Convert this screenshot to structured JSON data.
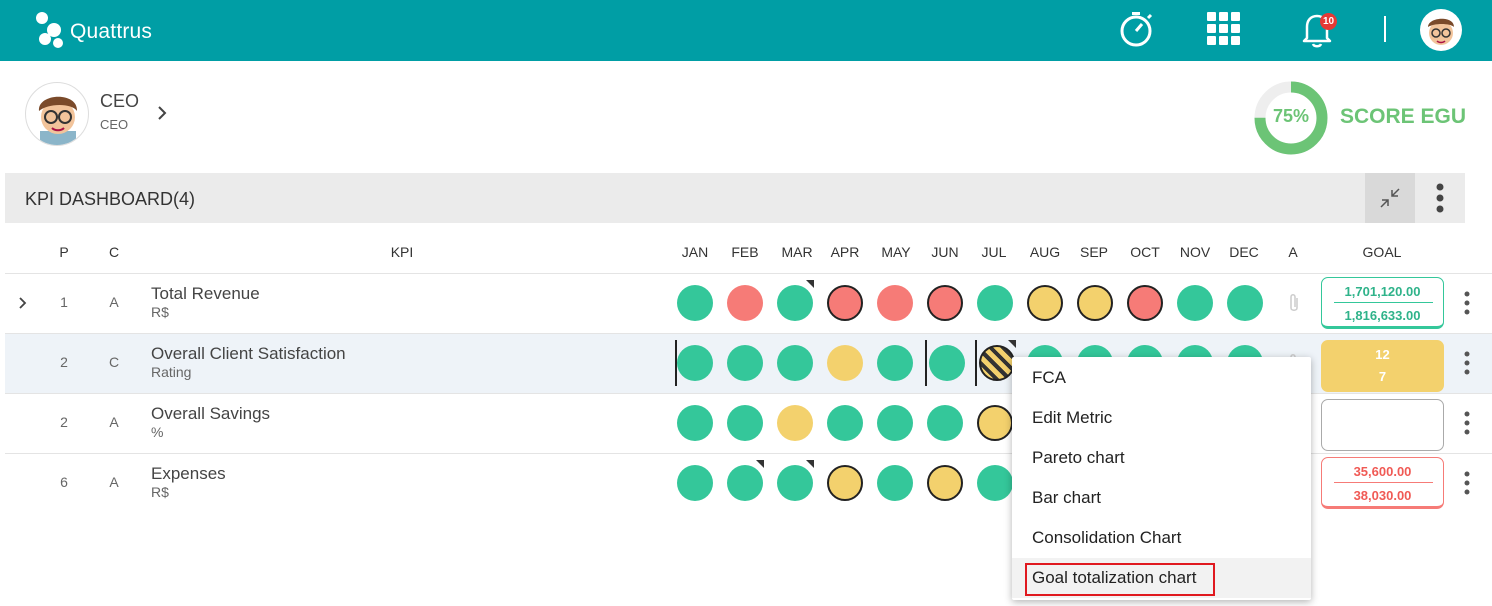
{
  "topbar": {
    "brand": "Quattrus",
    "notification_count": "10",
    "icons": [
      "timer-icon",
      "apps-grid-icon",
      "bell-icon",
      "user-avatar"
    ]
  },
  "profile": {
    "name": "CEO",
    "role": "CEO"
  },
  "score": {
    "percent_label": "75%",
    "percent_value": 75,
    "label": "SCORE EGU",
    "color": "#6cc476"
  },
  "dashboard": {
    "title": "KPI DASHBOARD(4)",
    "columns": {
      "p": "P",
      "c": "C",
      "kpi": "KPI",
      "months": [
        "JAN",
        "FEB",
        "MAR",
        "APR",
        "MAY",
        "JUN",
        "JUL",
        "AUG",
        "SEP",
        "OCT",
        "NOV",
        "DEC"
      ],
      "a": "A",
      "goal": "GOAL"
    },
    "rows": [
      {
        "p": "1",
        "c": "A",
        "name": "Total Revenue",
        "unit": "R$",
        "goal_top": "1,701,120.00",
        "goal_bottom": "1,816,633.00"
      },
      {
        "p": "2",
        "c": "C",
        "name": "Overall Client Satisfaction",
        "unit": "Rating",
        "goal_top": "12",
        "goal_bottom": "7"
      },
      {
        "p": "2",
        "c": "A",
        "name": "Overall Savings",
        "unit": "%",
        "goal_top": "",
        "goal_bottom": ""
      },
      {
        "p": "6",
        "c": "A",
        "name": "Expenses",
        "unit": "R$",
        "goal_top": "35,600.00",
        "goal_bottom": "38,030.00"
      }
    ]
  },
  "status_colors": {
    "green": "#34c79a",
    "red": "#f67b77",
    "yellow": "#f3d16d"
  },
  "context_menu": {
    "items": [
      "FCA",
      "Edit Metric",
      "Pareto chart",
      "Bar chart",
      "Consolidation Chart",
      "Goal totalization chart"
    ],
    "highlighted": "Goal totalization chart"
  }
}
